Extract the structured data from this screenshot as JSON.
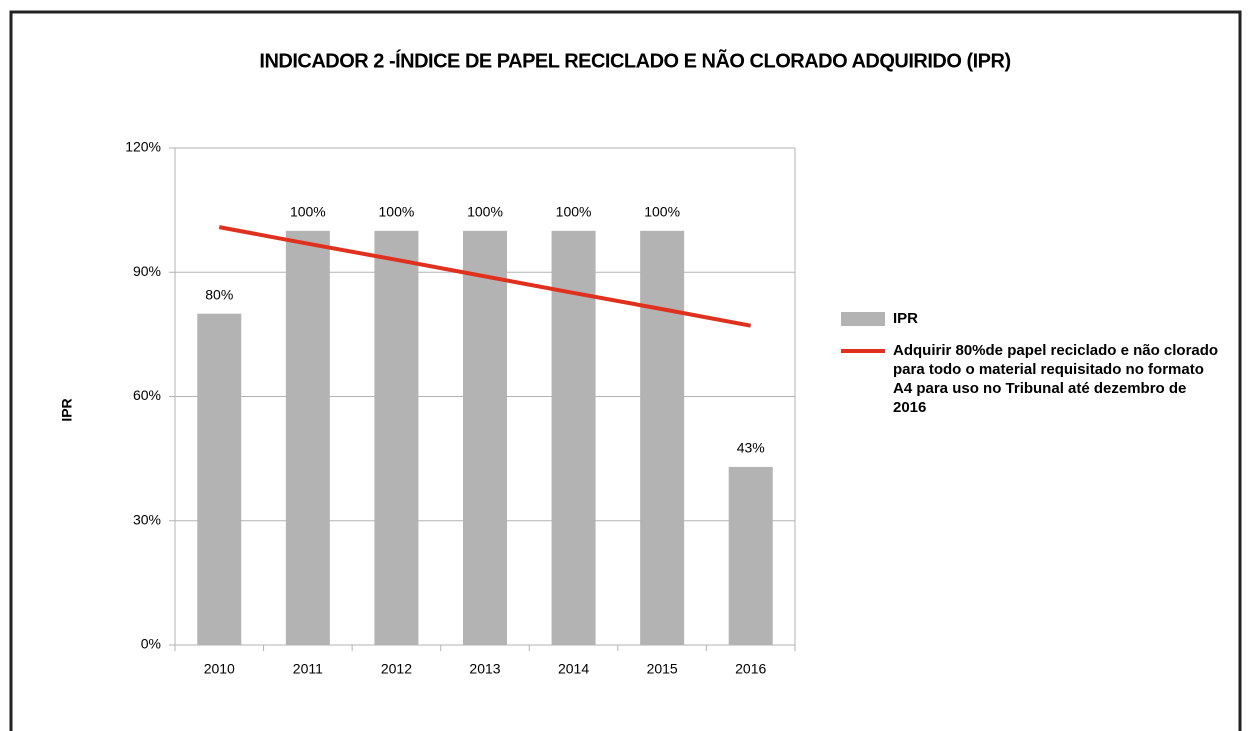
{
  "chart_data": {
    "type": "bar",
    "title": "INDICADOR 2 -ÍNDICE DE PAPEL RECICLADO E NÃO CLORADO ADQUIRIDO (IPR)",
    "ylabel": "IPR",
    "categories": [
      "2010",
      "2011",
      "2012",
      "2013",
      "2014",
      "2015",
      "2016"
    ],
    "series": [
      {
        "name": "IPR",
        "type": "bar",
        "color": "#b3b3b3",
        "values": [
          80,
          100,
          100,
          100,
          100,
          100,
          43
        ],
        "value_labels": [
          "80%",
          "100%",
          "100%",
          "100%",
          "100%",
          "100%",
          "43%"
        ]
      },
      {
        "name": "Adquirir 80%de papel reciclado e não clorado para todo o material requisitado no formato A4 para uso no Tribunal até dezembro de 2016",
        "type": "line",
        "color": "#e0301e",
        "values": [
          100.9,
          96.9,
          93.0,
          89.0,
          85.0,
          81.1,
          77.1
        ]
      }
    ],
    "ylim": [
      0,
      120
    ],
    "yticks": [
      {
        "value": 0,
        "label": "0%"
      },
      {
        "value": 30,
        "label": "30%"
      },
      {
        "value": 60,
        "label": "60%"
      },
      {
        "value": 90,
        "label": "90%"
      },
      {
        "value": 120,
        "label": "120%"
      }
    ],
    "grid": true,
    "legend": "right"
  }
}
